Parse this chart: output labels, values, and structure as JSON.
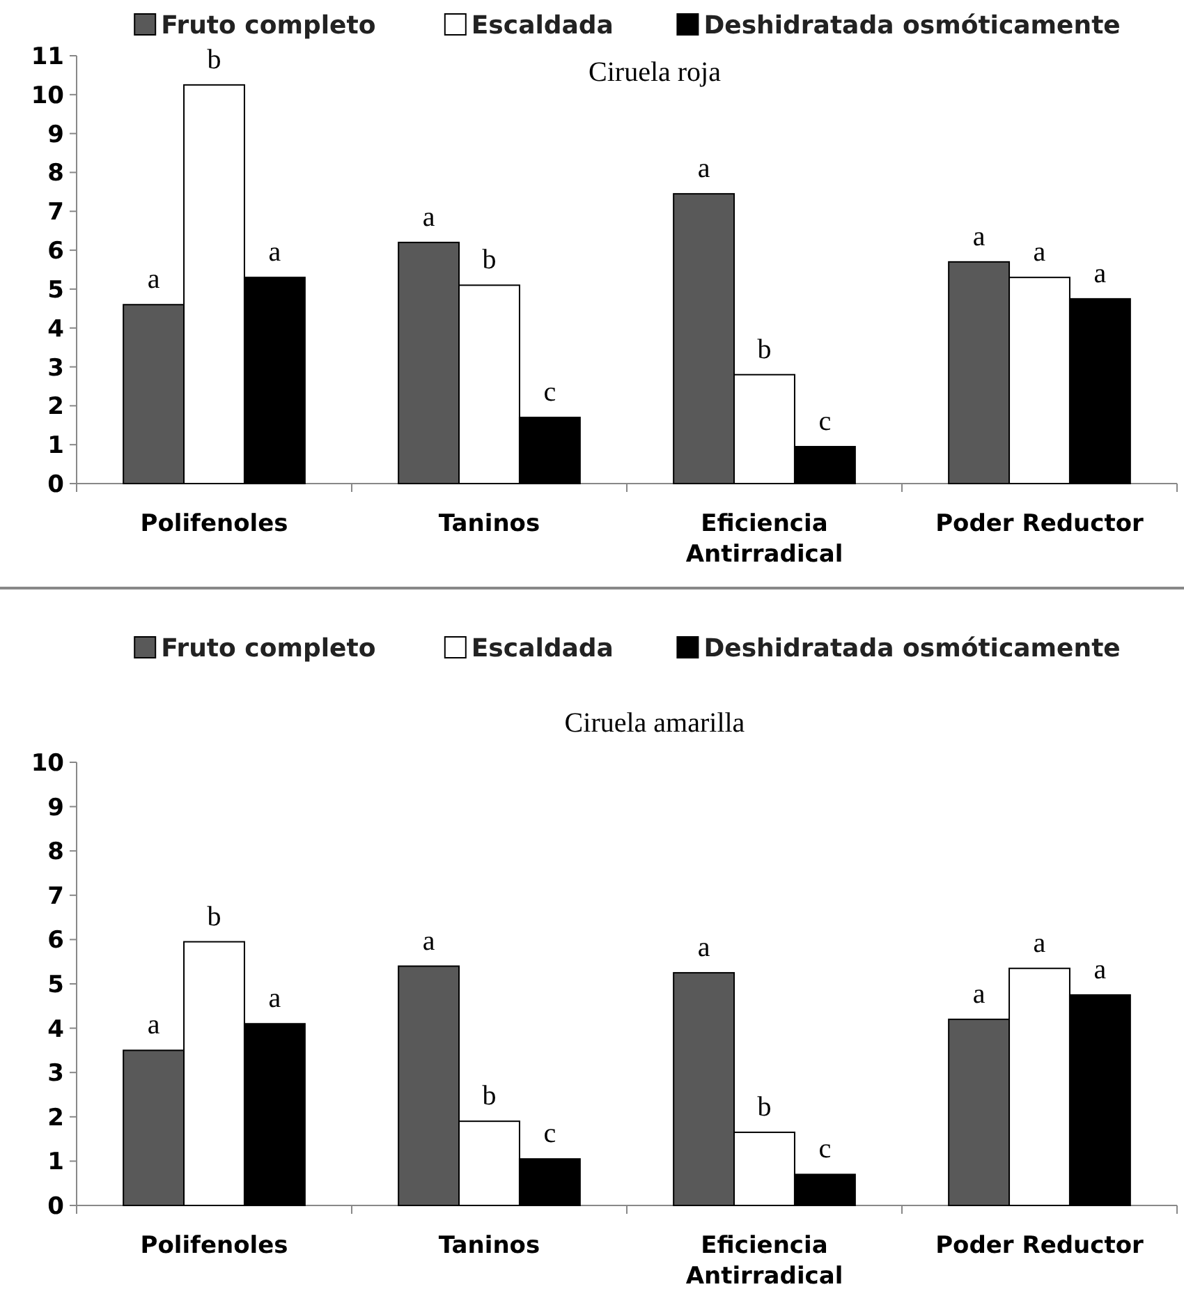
{
  "chart_data": [
    {
      "type": "bar",
      "title": "Ciruela roja",
      "categories": [
        "Polifenoles",
        "Taninos",
        "Eficiencia\nAntirradical",
        "Poder Reductor"
      ],
      "series": [
        {
          "name": "Fruto completo",
          "color": "#595959",
          "values": [
            4.6,
            6.2,
            7.45,
            5.7
          ],
          "value_labels": [
            "a",
            "a",
            "a",
            "a"
          ]
        },
        {
          "name": "Escaldada",
          "color": "#ffffff",
          "values": [
            10.25,
            5.1,
            2.8,
            5.3
          ],
          "value_labels": [
            "b",
            "b",
            "b",
            "a"
          ]
        },
        {
          "name": "Deshidratada osmóticamente",
          "color": "#000000",
          "values": [
            5.3,
            1.7,
            0.95,
            4.75
          ],
          "value_labels": [
            "a",
            "c",
            "c",
            "a"
          ]
        }
      ],
      "ylim": [
        0,
        11
      ],
      "yticks": [
        0,
        1,
        2,
        3,
        4,
        5,
        6,
        7,
        8,
        9,
        10,
        11
      ],
      "legend": "top",
      "grid": false
    },
    {
      "type": "bar",
      "title": "Ciruela amarilla",
      "categories": [
        "Polifenoles",
        "Taninos",
        "Eficiencia\nAntirradical",
        "Poder Reductor"
      ],
      "series": [
        {
          "name": "Fruto completo",
          "color": "#595959",
          "values": [
            3.5,
            5.4,
            5.25,
            4.2
          ],
          "value_labels": [
            "a",
            "a",
            "a",
            "a"
          ]
        },
        {
          "name": "Escaldada",
          "color": "#ffffff",
          "values": [
            5.95,
            1.9,
            1.65,
            5.35
          ],
          "value_labels": [
            "b",
            "b",
            "b",
            "a"
          ]
        },
        {
          "name": "Deshidratada osmóticamente",
          "color": "#000000",
          "values": [
            4.1,
            1.05,
            0.7,
            4.75
          ],
          "value_labels": [
            "a",
            "c",
            "c",
            "a"
          ]
        }
      ],
      "ylim": [
        0,
        10
      ],
      "yticks": [
        0,
        1,
        2,
        3,
        4,
        5,
        6,
        7,
        8,
        9,
        10
      ],
      "legend": "top",
      "grid": false
    }
  ]
}
